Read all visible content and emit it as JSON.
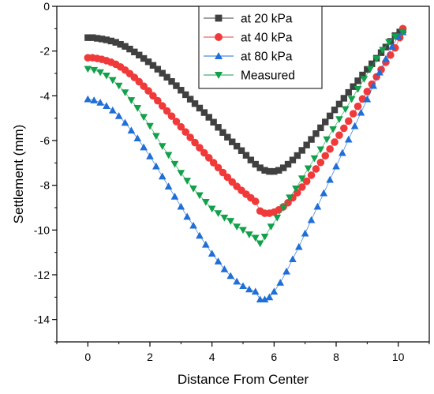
{
  "chart_data": {
    "type": "scatter",
    "xlabel": "Distance From Center",
    "ylabel": "Settlement (mm)",
    "xlim": [
      -1,
      11
    ],
    "ylim": [
      -15,
      0
    ],
    "xticks": [
      0,
      2,
      4,
      6,
      8,
      10
    ],
    "yticks": [
      0,
      -2,
      -4,
      -6,
      -8,
      -10,
      -12,
      -14
    ],
    "grid": false,
    "legend_position": "top-center",
    "series": [
      {
        "name": "at 20 kPa",
        "color": "#404040",
        "marker": "square",
        "x": [
          0,
          0.15,
          0.3,
          0.45,
          0.6,
          0.75,
          0.9,
          1.05,
          1.2,
          1.35,
          1.5,
          1.65,
          1.8,
          1.95,
          2.1,
          2.25,
          2.4,
          2.55,
          2.7,
          2.85,
          3.0,
          3.15,
          3.3,
          3.45,
          3.6,
          3.75,
          3.9,
          4.05,
          4.2,
          4.35,
          4.5,
          4.65,
          4.8,
          4.95,
          5.1,
          5.25,
          5.4,
          5.55,
          5.7,
          5.85,
          6.0,
          6.15,
          6.3,
          6.45,
          6.6,
          6.75,
          6.9,
          7.05,
          7.2,
          7.35,
          7.5,
          7.65,
          7.8,
          7.95,
          8.1,
          8.25,
          8.4,
          8.55,
          8.7,
          8.85,
          9.0,
          9.15,
          9.3,
          9.45,
          9.6,
          9.75,
          9.9,
          10.05,
          10.15
        ],
        "y": [
          -1.4,
          -1.4,
          -1.43,
          -1.46,
          -1.5,
          -1.55,
          -1.61,
          -1.7,
          -1.79,
          -1.91,
          -2.04,
          -2.18,
          -2.33,
          -2.48,
          -2.64,
          -2.81,
          -2.99,
          -3.17,
          -3.36,
          -3.55,
          -3.75,
          -3.95,
          -4.15,
          -4.35,
          -4.55,
          -4.75,
          -4.96,
          -5.18,
          -5.41,
          -5.64,
          -5.85,
          -6.06,
          -6.25,
          -6.45,
          -6.66,
          -6.87,
          -7.06,
          -7.22,
          -7.33,
          -7.38,
          -7.38,
          -7.33,
          -7.22,
          -7.06,
          -6.87,
          -6.67,
          -6.44,
          -6.2,
          -5.95,
          -5.69,
          -5.43,
          -5.17,
          -4.9,
          -4.63,
          -4.37,
          -4.11,
          -3.85,
          -3.59,
          -3.33,
          -3.07,
          -2.82,
          -2.57,
          -2.32,
          -2.07,
          -1.82,
          -1.57,
          -1.31,
          -1.15,
          -1.05
        ]
      },
      {
        "name": "at 40 kPa",
        "color": "#f03a3a",
        "marker": "circle",
        "x": [
          0,
          0.15,
          0.3,
          0.45,
          0.6,
          0.75,
          0.9,
          1.05,
          1.2,
          1.35,
          1.5,
          1.65,
          1.8,
          1.95,
          2.1,
          2.25,
          2.4,
          2.55,
          2.7,
          2.85,
          3.0,
          3.15,
          3.3,
          3.45,
          3.6,
          3.75,
          3.9,
          4.05,
          4.2,
          4.35,
          4.5,
          4.65,
          4.8,
          4.95,
          5.1,
          5.25,
          5.4,
          5.55,
          5.7,
          5.85,
          6.0,
          6.15,
          6.3,
          6.45,
          6.6,
          6.75,
          6.9,
          7.05,
          7.2,
          7.35,
          7.5,
          7.65,
          7.8,
          7.95,
          8.1,
          8.25,
          8.4,
          8.55,
          8.7,
          8.85,
          9.0,
          9.15,
          9.3,
          9.45,
          9.6,
          9.75,
          9.9,
          10.05,
          10.15
        ],
        "y": [
          -2.3,
          -2.3,
          -2.33,
          -2.37,
          -2.43,
          -2.5,
          -2.59,
          -2.71,
          -2.85,
          -3.01,
          -3.18,
          -3.37,
          -3.57,
          -3.78,
          -4.0,
          -4.22,
          -4.45,
          -4.68,
          -4.91,
          -5.15,
          -5.39,
          -5.62,
          -5.86,
          -6.09,
          -6.32,
          -6.55,
          -6.77,
          -6.99,
          -7.21,
          -7.43,
          -7.64,
          -7.85,
          -8.05,
          -8.23,
          -8.4,
          -8.56,
          -8.72,
          -9.15,
          -9.25,
          -9.25,
          -9.2,
          -9.1,
          -8.96,
          -8.78,
          -8.56,
          -8.33,
          -8.08,
          -7.82,
          -7.55,
          -7.27,
          -6.98,
          -6.68,
          -6.38,
          -6.07,
          -5.76,
          -5.45,
          -5.13,
          -4.8,
          -4.47,
          -4.14,
          -3.81,
          -3.48,
          -3.15,
          -2.83,
          -2.5,
          -2.18,
          -1.86,
          -1.4,
          -1.0
        ]
      },
      {
        "name": "at 80 kPa",
        "color": "#1f6fd6",
        "marker": "triangle-up",
        "x": [
          0,
          0.2,
          0.4,
          0.6,
          0.8,
          1.0,
          1.2,
          1.4,
          1.6,
          1.8,
          2.0,
          2.2,
          2.4,
          2.6,
          2.8,
          3.0,
          3.2,
          3.4,
          3.6,
          3.8,
          4.0,
          4.2,
          4.4,
          4.6,
          4.8,
          5.0,
          5.2,
          5.4,
          5.55,
          5.7,
          5.85,
          6.0,
          6.2,
          6.4,
          6.6,
          6.8,
          7.0,
          7.2,
          7.4,
          7.6,
          7.8,
          8.0,
          8.2,
          8.4,
          8.6,
          8.8,
          9.0,
          9.2,
          9.4,
          9.6,
          9.8,
          10.0,
          10.15
        ],
        "y": [
          -4.15,
          -4.2,
          -4.3,
          -4.45,
          -4.65,
          -4.9,
          -5.2,
          -5.55,
          -5.9,
          -6.3,
          -6.7,
          -7.15,
          -7.6,
          -8.05,
          -8.5,
          -8.95,
          -9.4,
          -9.8,
          -10.25,
          -10.65,
          -11.05,
          -11.4,
          -11.75,
          -12.05,
          -12.3,
          -12.5,
          -12.65,
          -12.75,
          -13.1,
          -13.1,
          -13.0,
          -12.75,
          -12.35,
          -11.85,
          -11.3,
          -10.75,
          -10.15,
          -9.55,
          -8.95,
          -8.35,
          -7.75,
          -7.15,
          -6.55,
          -5.95,
          -5.35,
          -4.75,
          -4.15,
          -3.55,
          -2.95,
          -2.35,
          -1.8,
          -1.35,
          -1.15
        ]
      },
      {
        "name": "Measured",
        "color": "#12a04a",
        "marker": "triangle-down",
        "x": [
          0,
          0.2,
          0.4,
          0.6,
          0.8,
          1.0,
          1.2,
          1.4,
          1.6,
          1.8,
          2.0,
          2.2,
          2.4,
          2.6,
          2.8,
          3.0,
          3.2,
          3.4,
          3.6,
          3.8,
          4.0,
          4.2,
          4.4,
          4.6,
          4.8,
          5.0,
          5.2,
          5.4,
          5.55,
          5.7,
          5.9,
          6.1,
          6.3,
          6.5,
          6.7,
          6.9,
          7.1,
          7.3,
          7.5,
          7.7,
          7.9,
          8.1,
          8.3,
          8.5,
          8.7,
          8.9,
          9.1,
          9.3,
          9.5,
          9.7,
          9.9,
          10.15
        ],
        "y": [
          -2.8,
          -2.85,
          -2.95,
          -3.1,
          -3.3,
          -3.55,
          -3.85,
          -4.2,
          -4.55,
          -4.95,
          -5.35,
          -5.8,
          -6.25,
          -6.65,
          -7.05,
          -7.45,
          -7.8,
          -8.15,
          -8.45,
          -8.75,
          -9.05,
          -9.25,
          -9.45,
          -9.6,
          -9.85,
          -10.0,
          -10.2,
          -10.35,
          -10.6,
          -10.3,
          -9.85,
          -9.45,
          -9.0,
          -8.55,
          -8.15,
          -7.7,
          -7.25,
          -6.8,
          -6.4,
          -5.95,
          -5.5,
          -5.05,
          -4.6,
          -4.15,
          -3.7,
          -3.25,
          -2.8,
          -2.35,
          -1.95,
          -1.6,
          -1.35,
          -1.15
        ]
      }
    ]
  }
}
